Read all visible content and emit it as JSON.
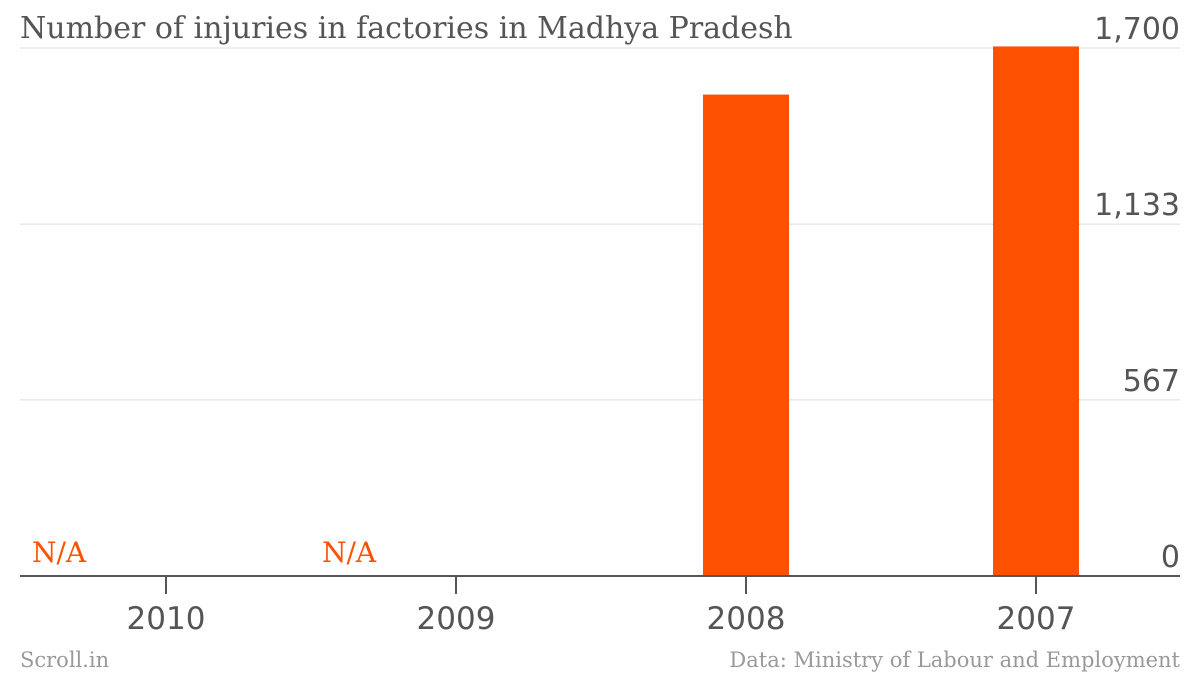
{
  "chart_data": {
    "type": "bar",
    "title": "Number of injuries in factories in Madhya Pradesh",
    "categories": [
      "2010",
      "2009",
      "2008",
      "2007"
    ],
    "values": [
      null,
      null,
      1550,
      1705
    ],
    "missing_label": "N/A",
    "y_ticks": [
      "0",
      "567",
      "1,133",
      "1,700"
    ],
    "y_tick_values": [
      0,
      567,
      1133,
      1700
    ],
    "ylim": [
      0,
      1700
    ],
    "grid": true,
    "y_axis_side": "right",
    "bar_color": "#fc5100"
  },
  "footer": {
    "brand": "Scroll.in",
    "source": "Data: Ministry of Labour and Employment"
  }
}
